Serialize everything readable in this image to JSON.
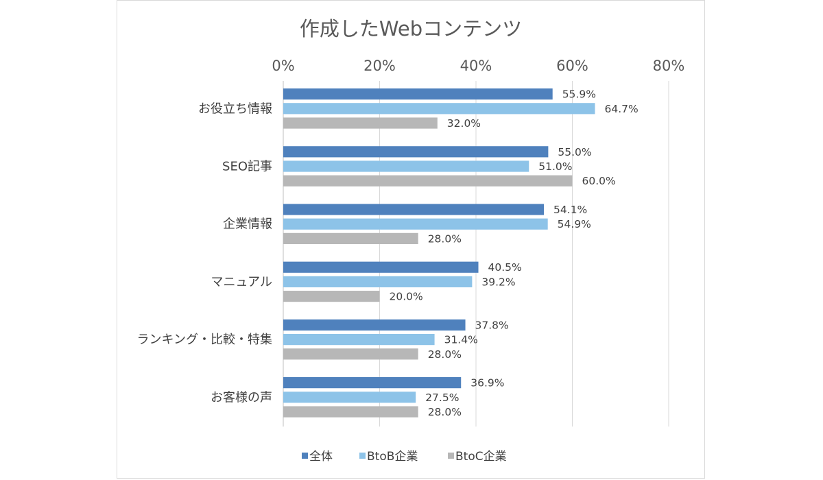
{
  "chart_data": {
    "type": "bar",
    "orientation": "horizontal",
    "title": "作成したWebコンテンツ",
    "categories": [
      "お役立ち情報",
      "SEO記事",
      "企業情報",
      "マニュアル",
      "ランキング・比較・特集",
      "お客様の声"
    ],
    "series": [
      {
        "name": "全体",
        "color": "#4f81bd",
        "values": [
          55.9,
          55.0,
          54.1,
          40.5,
          37.8,
          36.9
        ]
      },
      {
        "name": "BtoB企業",
        "color": "#8dc3e8",
        "values": [
          64.7,
          51.0,
          54.9,
          39.2,
          31.4,
          27.5
        ]
      },
      {
        "name": "BtoC企業",
        "color": "#b7b7b7",
        "values": [
          32.0,
          60.0,
          28.0,
          20.0,
          28.0,
          28.0
        ]
      }
    ],
    "value_axis": {
      "range": [
        0,
        80
      ],
      "ticks": [
        0,
        20,
        40,
        60,
        80
      ],
      "tick_labels": [
        "0%",
        "20%",
        "40%",
        "60%",
        "80%"
      ],
      "position": "top"
    },
    "gridlines": true,
    "data_labels": [
      [
        "55.9%",
        "64.7%",
        "32.0%"
      ],
      [
        "55.0%",
        "51.0%",
        "60.0%"
      ],
      [
        "54.1%",
        "54.9%",
        "28.0%"
      ],
      [
        "40.5%",
        "39.2%",
        "20.0%"
      ],
      [
        "37.8%",
        "31.4%",
        "28.0%"
      ],
      [
        "36.9%",
        "27.5%",
        "28.0%"
      ]
    ],
    "legend_position": "bottom"
  }
}
